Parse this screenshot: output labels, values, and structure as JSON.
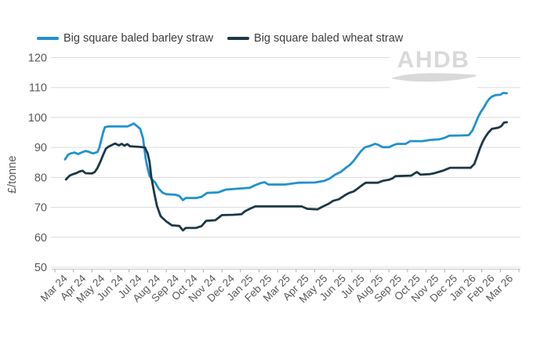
{
  "legend": {
    "series": [
      {
        "label": "Big square baled barley straw",
        "color": "#2191CE"
      },
      {
        "label": "Big square baled wheat straw",
        "color": "#1C3845"
      }
    ]
  },
  "watermark": {
    "text": "AHDB"
  },
  "axis": {
    "y_title": "£/tonne"
  },
  "chart_data": {
    "type": "line",
    "title": "",
    "xlabel": "",
    "ylabel": "£/tonne",
    "ylim": [
      50,
      120
    ],
    "y_ticks": [
      120,
      110,
      100,
      90,
      80,
      70,
      60,
      50
    ],
    "grid": "horizontal",
    "legend_position": "top",
    "x_labels": [
      "Mar 24",
      "Apr 24",
      "May 24",
      "Jun 24",
      "Jul 24",
      "Aug 24",
      "Sep 24",
      "Oct 24",
      "Nov 24",
      "Dec 24",
      "Jan 25",
      "Feb 25",
      "Mar 25",
      "Apr 25",
      "May 25",
      "Jun 25",
      "Jul 25",
      "Aug 25",
      "Sep 25",
      "Oct 25",
      "Nov 25",
      "Dec 25",
      "Jan 26",
      "Feb 26",
      "Mar 26"
    ],
    "x_unit_note": "point x = months after start of Mar 24 axis interval (weekly price series)",
    "series": [
      {
        "name": "Big square baled barley straw",
        "color": "#2191CE",
        "points": [
          [
            0.55,
            86.0
          ],
          [
            0.7,
            87.5
          ],
          [
            0.85,
            88.0
          ],
          [
            1.05,
            88.3
          ],
          [
            1.25,
            87.8
          ],
          [
            1.45,
            88.3
          ],
          [
            1.65,
            88.8
          ],
          [
            1.85,
            88.5
          ],
          [
            2.05,
            88.0
          ],
          [
            2.3,
            88.5
          ],
          [
            2.4,
            90.0
          ],
          [
            2.5,
            92.5
          ],
          [
            2.6,
            95.0
          ],
          [
            2.7,
            96.8
          ],
          [
            2.9,
            97.0
          ],
          [
            3.3,
            97.0
          ],
          [
            3.9,
            97.0
          ],
          [
            4.0,
            97.2
          ],
          [
            4.25,
            98.0
          ],
          [
            4.45,
            97.0
          ],
          [
            4.6,
            96.2
          ],
          [
            4.75,
            93.0
          ],
          [
            4.9,
            86.0
          ],
          [
            5.0,
            83.0
          ],
          [
            5.1,
            80.5
          ],
          [
            5.25,
            79.2
          ],
          [
            5.4,
            78.3
          ],
          [
            5.6,
            76.2
          ],
          [
            5.8,
            74.9
          ],
          [
            6.0,
            74.4
          ],
          [
            6.5,
            74.2
          ],
          [
            6.7,
            73.8
          ],
          [
            6.9,
            72.4
          ],
          [
            7.05,
            73.1
          ],
          [
            7.6,
            73.1
          ],
          [
            7.9,
            73.5
          ],
          [
            8.2,
            74.8
          ],
          [
            8.8,
            75.0
          ],
          [
            9.2,
            75.9
          ],
          [
            9.8,
            76.2
          ],
          [
            10.5,
            76.5
          ],
          [
            10.8,
            77.4
          ],
          [
            11.1,
            78.1
          ],
          [
            11.3,
            78.4
          ],
          [
            11.5,
            77.6
          ],
          [
            12.4,
            77.6
          ],
          [
            13.1,
            78.2
          ],
          [
            14.0,
            78.3
          ],
          [
            14.5,
            78.8
          ],
          [
            14.8,
            79.6
          ],
          [
            15.1,
            80.9
          ],
          [
            15.4,
            81.8
          ],
          [
            15.7,
            83.3
          ],
          [
            15.9,
            84.2
          ],
          [
            16.1,
            85.5
          ],
          [
            16.3,
            87.2
          ],
          [
            16.5,
            88.8
          ],
          [
            16.7,
            90.0
          ],
          [
            17.0,
            90.6
          ],
          [
            17.25,
            91.2
          ],
          [
            17.45,
            90.8
          ],
          [
            17.65,
            90.1
          ],
          [
            18.0,
            90.1
          ],
          [
            18.25,
            90.8
          ],
          [
            18.45,
            91.2
          ],
          [
            18.9,
            91.2
          ],
          [
            19.15,
            92.1
          ],
          [
            19.8,
            92.1
          ],
          [
            20.2,
            92.5
          ],
          [
            20.7,
            92.7
          ],
          [
            21.0,
            93.2
          ],
          [
            21.25,
            93.9
          ],
          [
            21.9,
            94.0
          ],
          [
            22.3,
            94.1
          ],
          [
            22.5,
            95.7
          ],
          [
            22.65,
            97.9
          ],
          [
            22.8,
            100.1
          ],
          [
            22.95,
            101.9
          ],
          [
            23.1,
            103.2
          ],
          [
            23.25,
            104.9
          ],
          [
            23.4,
            106.2
          ],
          [
            23.55,
            107.0
          ],
          [
            23.75,
            107.5
          ],
          [
            24.0,
            107.6
          ],
          [
            24.15,
            108.2
          ],
          [
            24.35,
            108.1
          ]
        ]
      },
      {
        "name": "Big square baled wheat straw",
        "color": "#1C3845",
        "points": [
          [
            0.6,
            79.3
          ],
          [
            0.78,
            80.5
          ],
          [
            0.95,
            81.0
          ],
          [
            1.15,
            81.4
          ],
          [
            1.35,
            82.0
          ],
          [
            1.5,
            82.2
          ],
          [
            1.65,
            81.4
          ],
          [
            2.0,
            81.3
          ],
          [
            2.15,
            81.8
          ],
          [
            2.3,
            83.2
          ],
          [
            2.45,
            85.2
          ],
          [
            2.6,
            87.5
          ],
          [
            2.75,
            89.6
          ],
          [
            2.9,
            90.3
          ],
          [
            3.1,
            90.9
          ],
          [
            3.25,
            91.3
          ],
          [
            3.45,
            90.7
          ],
          [
            3.6,
            91.2
          ],
          [
            3.75,
            90.6
          ],
          [
            3.9,
            91.1
          ],
          [
            4.05,
            90.4
          ],
          [
            4.5,
            90.2
          ],
          [
            4.85,
            90.0
          ],
          [
            5.0,
            88.0
          ],
          [
            5.1,
            85.2
          ],
          [
            5.2,
            80.0
          ],
          [
            5.35,
            74.9
          ],
          [
            5.5,
            70.5
          ],
          [
            5.7,
            67.0
          ],
          [
            6.0,
            65.3
          ],
          [
            6.3,
            64.0
          ],
          [
            6.7,
            63.8
          ],
          [
            6.9,
            62.3
          ],
          [
            7.05,
            63.1
          ],
          [
            7.6,
            63.1
          ],
          [
            7.9,
            63.7
          ],
          [
            8.15,
            65.5
          ],
          [
            8.65,
            65.7
          ],
          [
            9.0,
            67.4
          ],
          [
            9.6,
            67.5
          ],
          [
            10.05,
            67.7
          ],
          [
            10.25,
            68.7
          ],
          [
            10.5,
            69.5
          ],
          [
            10.8,
            70.3
          ],
          [
            11.8,
            70.3
          ],
          [
            13.3,
            70.3
          ],
          [
            13.6,
            69.5
          ],
          [
            14.15,
            69.3
          ],
          [
            14.45,
            70.3
          ],
          [
            14.75,
            71.2
          ],
          [
            15.0,
            72.2
          ],
          [
            15.3,
            72.7
          ],
          [
            15.5,
            73.5
          ],
          [
            15.7,
            74.3
          ],
          [
            15.9,
            74.9
          ],
          [
            16.1,
            75.3
          ],
          [
            16.3,
            76.2
          ],
          [
            16.55,
            77.4
          ],
          [
            16.75,
            78.2
          ],
          [
            17.4,
            78.2
          ],
          [
            17.7,
            78.9
          ],
          [
            18.0,
            79.2
          ],
          [
            18.2,
            79.7
          ],
          [
            18.35,
            80.4
          ],
          [
            19.2,
            80.6
          ],
          [
            19.5,
            81.8
          ],
          [
            19.7,
            80.9
          ],
          [
            20.2,
            81.1
          ],
          [
            20.45,
            81.4
          ],
          [
            20.9,
            82.2
          ],
          [
            21.3,
            83.2
          ],
          [
            22.4,
            83.2
          ],
          [
            22.6,
            84.5
          ],
          [
            22.75,
            87.0
          ],
          [
            22.9,
            89.7
          ],
          [
            23.05,
            91.9
          ],
          [
            23.2,
            93.6
          ],
          [
            23.35,
            94.9
          ],
          [
            23.55,
            96.2
          ],
          [
            23.9,
            96.6
          ],
          [
            24.05,
            97.1
          ],
          [
            24.2,
            98.3
          ],
          [
            24.35,
            98.4
          ]
        ]
      }
    ]
  }
}
